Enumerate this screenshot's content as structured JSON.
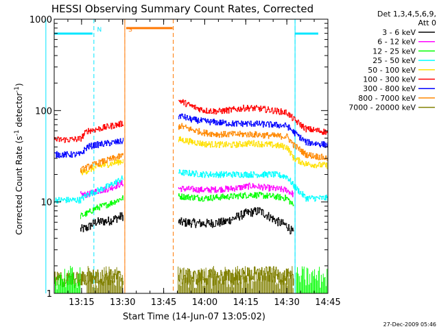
{
  "chart_data": {
    "type": "line",
    "title": "HESSI Observing Summary Count Rates, Corrected",
    "xlabel": "Start Time (14-Jun-07 13:05:02)",
    "ylabel_main": "Corrected Count Rate (s",
    "ylabel_sup1": "-1",
    "ylabel_mid": " detector",
    "ylabel_sup2": "-1",
    "ylabel_end": ")",
    "yscale": "log",
    "ylim": [
      1,
      1000
    ],
    "xlim_minutes": [
      0,
      100
    ],
    "x_ticks": [
      {
        "label": "13:15",
        "minute": 10
      },
      {
        "label": "13:30",
        "minute": 25
      },
      {
        "label": "13:45",
        "minute": 40
      },
      {
        "label": "14:00",
        "minute": 55
      },
      {
        "label": "14:15",
        "minute": 70
      },
      {
        "label": "14:30",
        "minute": 85
      },
      {
        "label": "14:45",
        "minute": 100
      }
    ],
    "y_ticks": [
      {
        "label": "1",
        "value": 1
      },
      {
        "label": "10",
        "value": 10
      },
      {
        "label": "100",
        "value": 100
      },
      {
        "label": "1000",
        "value": 1000
      }
    ],
    "legend_header": [
      "Det 1,3,4,5,6,9,",
      "Att 0"
    ],
    "timestamp": "27-Dec-2009 05:46",
    "markers": [
      {
        "label": "N",
        "color": "#00e6ff",
        "minutes": [
          14.5,
          88.0
        ]
      },
      {
        "label": "S",
        "color": "#ff7700",
        "minutes": [
          25.8,
          43.5
        ]
      }
    ],
    "gaps_minutes": [
      [
        25.2,
        45.3
      ]
    ],
    "series": [
      {
        "name": "3 - 6 keV",
        "color": "#000000",
        "points": [
          [
            9.5,
            5.0
          ],
          [
            12,
            5.2
          ],
          [
            15,
            6.0
          ],
          [
            20,
            6.2
          ],
          [
            24.8,
            7.0
          ],
          [
            46,
            6.0
          ],
          [
            55,
            5.8
          ],
          [
            62,
            6.0
          ],
          [
            70,
            7.5
          ],
          [
            75,
            8.0
          ],
          [
            82,
            6.0
          ],
          [
            85,
            5.5
          ],
          [
            87.5,
            4.5
          ]
        ]
      },
      {
        "name": "6 - 12 keV",
        "color": "#ff00ff",
        "points": [
          [
            9.5,
            12
          ],
          [
            12,
            12
          ],
          [
            15,
            13
          ],
          [
            20,
            14
          ],
          [
            24.8,
            16
          ],
          [
            46,
            14
          ],
          [
            55,
            13.5
          ],
          [
            65,
            14
          ],
          [
            72,
            15
          ],
          [
            80,
            14
          ],
          [
            85,
            13.5
          ],
          [
            87.5,
            12
          ]
        ]
      },
      {
        "name": "12 - 25 keV",
        "color": "#00ff00",
        "points": [
          [
            9.5,
            7
          ],
          [
            12,
            7.5
          ],
          [
            15,
            8.5
          ],
          [
            20,
            9.5
          ],
          [
            24.8,
            11
          ],
          [
            46,
            11.5
          ],
          [
            55,
            11
          ],
          [
            65,
            11.5
          ],
          [
            72,
            12
          ],
          [
            80,
            11.5
          ],
          [
            85,
            11
          ],
          [
            87.5,
            9
          ]
        ]
      },
      {
        "name": "25 - 50 keV",
        "color": "#00ffff",
        "points": [
          [
            0,
            10.5
          ],
          [
            5,
            10.5
          ],
          [
            9.5,
            10.5
          ],
          [
            12,
            12
          ],
          [
            15,
            13
          ],
          [
            20,
            15
          ],
          [
            24.8,
            18
          ],
          [
            46,
            21
          ],
          [
            55,
            20
          ],
          [
            65,
            20
          ],
          [
            72,
            20
          ],
          [
            80,
            20
          ],
          [
            85,
            19
          ],
          [
            87.5,
            15
          ],
          [
            92,
            11
          ],
          [
            100,
            11
          ]
        ]
      },
      {
        "name": "50 - 100 keV",
        "color": "#ffe000",
        "points": [
          [
            9.5,
            21
          ],
          [
            12,
            22
          ],
          [
            15,
            24
          ],
          [
            20,
            26
          ],
          [
            24.8,
            28
          ],
          [
            46,
            48
          ],
          [
            55,
            43
          ],
          [
            65,
            42
          ],
          [
            72,
            44
          ],
          [
            80,
            42
          ],
          [
            85,
            40
          ],
          [
            87.5,
            30
          ],
          [
            92,
            26
          ],
          [
            100,
            25
          ]
        ]
      },
      {
        "name": "100 - 300 keV",
        "color": "#ff0000",
        "points": [
          [
            0,
            48
          ],
          [
            5,
            48
          ],
          [
            9.5,
            49
          ],
          [
            12,
            60
          ],
          [
            15,
            62
          ],
          [
            20,
            67
          ],
          [
            24.8,
            72
          ],
          [
            46,
            128
          ],
          [
            50,
            112
          ],
          [
            55,
            100
          ],
          [
            60,
            98
          ],
          [
            65,
            102
          ],
          [
            70,
            107
          ],
          [
            75,
            105
          ],
          [
            80,
            100
          ],
          [
            85,
            95
          ],
          [
            87.5,
            80
          ],
          [
            92,
            63
          ],
          [
            100,
            58
          ]
        ]
      },
      {
        "name": "300 - 800 keV",
        "color": "#0000ff",
        "points": [
          [
            0,
            33
          ],
          [
            5,
            33
          ],
          [
            9.5,
            33
          ],
          [
            12,
            40
          ],
          [
            15,
            42
          ],
          [
            20,
            44
          ],
          [
            24.8,
            46
          ],
          [
            46,
            88
          ],
          [
            50,
            80
          ],
          [
            55,
            76
          ],
          [
            60,
            74
          ],
          [
            65,
            72
          ],
          [
            72,
            72
          ],
          [
            80,
            70
          ],
          [
            85,
            68
          ],
          [
            87.5,
            58
          ],
          [
            92,
            45
          ],
          [
            100,
            42
          ]
        ]
      },
      {
        "name": "800 - 7000 keV",
        "color": "#ff8800",
        "points": [
          [
            9.5,
            22
          ],
          [
            12,
            24
          ],
          [
            15,
            26
          ],
          [
            20,
            29
          ],
          [
            24.8,
            32
          ],
          [
            46,
            68
          ],
          [
            50,
            62
          ],
          [
            55,
            57
          ],
          [
            60,
            55
          ],
          [
            65,
            55
          ],
          [
            72,
            55
          ],
          [
            80,
            53
          ],
          [
            85,
            52
          ],
          [
            87.5,
            42
          ],
          [
            92,
            33
          ],
          [
            100,
            30
          ]
        ]
      },
      {
        "name": "7000 - 20000 keV",
        "color": "#808000",
        "points": [
          [
            0,
            1.4
          ],
          [
            5,
            1.4
          ],
          [
            9.5,
            1.4
          ],
          [
            12,
            1.5
          ],
          [
            15,
            1.5
          ],
          [
            20,
            1.5
          ],
          [
            24.8,
            1.5
          ],
          [
            46,
            1.5
          ],
          [
            55,
            1.5
          ],
          [
            65,
            1.5
          ],
          [
            72,
            1.6
          ],
          [
            80,
            1.6
          ],
          [
            85,
            1.5
          ],
          [
            87.5,
            1.4
          ]
        ]
      }
    ]
  }
}
